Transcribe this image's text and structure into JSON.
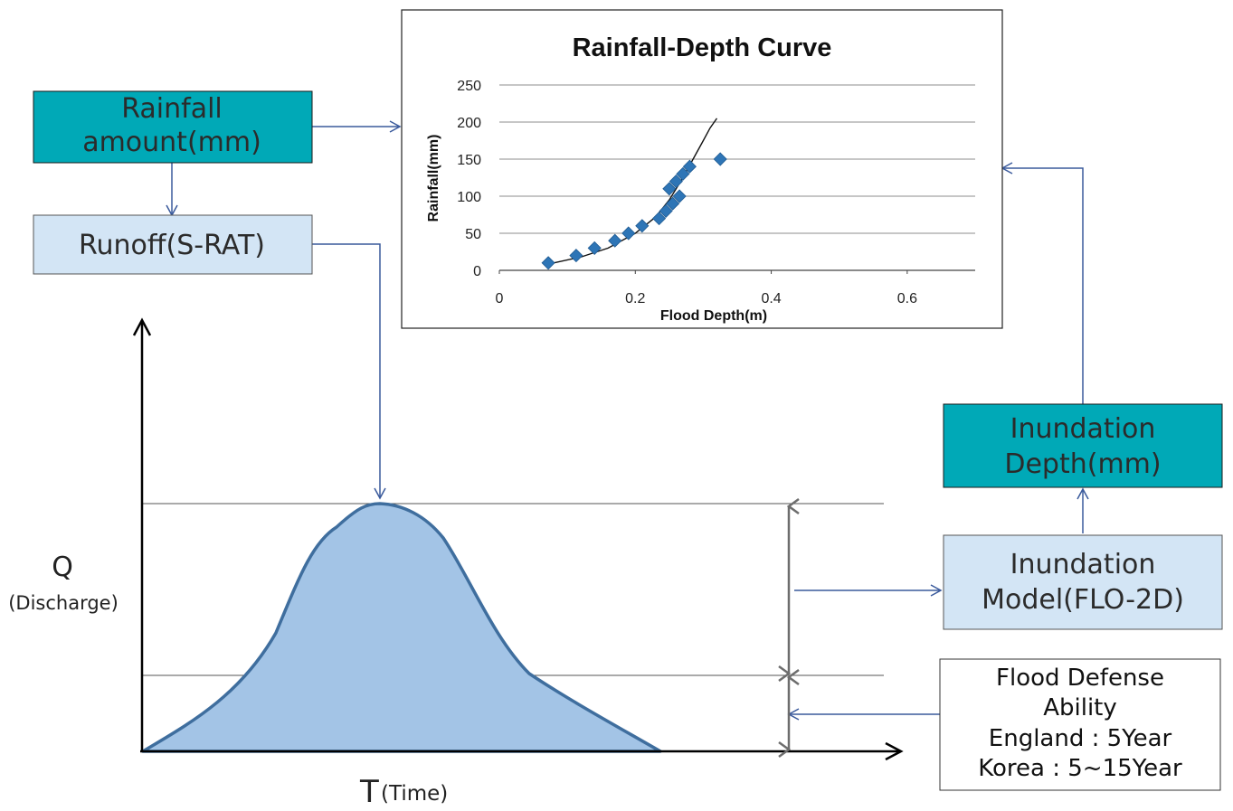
{
  "colors": {
    "teal": "#00a9b7",
    "light_blue": "#d3e5f5",
    "connector": "#3a5a9c",
    "hydrograph_fill": "#a3c4e6",
    "hydrograph_stroke": "#3f6e9e",
    "marker": "#2e75b6"
  },
  "boxes": {
    "rainfall": {
      "line1": "Rainfall",
      "line2": "amount(mm)"
    },
    "runoff": {
      "label": "Runoff(S-RAT)"
    },
    "inundation_depth": {
      "line1": "Inundation",
      "line2": "Depth(mm)"
    },
    "inundation_model": {
      "line1": "Inundation",
      "line2": "Model(FLO-2D)"
    },
    "defense": {
      "line1": "Flood Defense",
      "line2": "Ability",
      "line3": "England : 5Year",
      "line4": "Korea : 5~15Year"
    }
  },
  "hydrograph": {
    "y_label": "Q",
    "y_sub": "(Discharge)",
    "x_label": "T",
    "x_sub": "(Time)"
  },
  "chart_data": {
    "type": "scatter",
    "title": "Rainfall-Depth Curve",
    "xlabel": "Flood Depth(m)",
    "ylabel": "Rainfall(mm)",
    "xlim": [
      0,
      0.7
    ],
    "ylim": [
      0,
      250
    ],
    "x_ticks": [
      "0",
      "0.2",
      "0.4",
      "0.6"
    ],
    "y_ticks": [
      "0",
      "50",
      "100",
      "150",
      "200",
      "250"
    ],
    "gridlines": "horizontal",
    "points": [
      {
        "x": 0.072,
        "y": 10
      },
      {
        "x": 0.113,
        "y": 20
      },
      {
        "x": 0.14,
        "y": 30
      },
      {
        "x": 0.17,
        "y": 40
      },
      {
        "x": 0.19,
        "y": 50
      },
      {
        "x": 0.21,
        "y": 60
      },
      {
        "x": 0.235,
        "y": 70
      },
      {
        "x": 0.245,
        "y": 80
      },
      {
        "x": 0.255,
        "y": 90
      },
      {
        "x": 0.25,
        "y": 110
      },
      {
        "x": 0.26,
        "y": 120
      },
      {
        "x": 0.265,
        "y": 100
      },
      {
        "x": 0.27,
        "y": 130
      },
      {
        "x": 0.28,
        "y": 140
      },
      {
        "x": 0.325,
        "y": 150
      }
    ],
    "trendline": [
      {
        "x": 0.07,
        "y": 8
      },
      {
        "x": 0.12,
        "y": 18
      },
      {
        "x": 0.16,
        "y": 30
      },
      {
        "x": 0.2,
        "y": 50
      },
      {
        "x": 0.23,
        "y": 72
      },
      {
        "x": 0.25,
        "y": 95
      },
      {
        "x": 0.27,
        "y": 125
      },
      {
        "x": 0.285,
        "y": 150
      },
      {
        "x": 0.3,
        "y": 175
      },
      {
        "x": 0.31,
        "y": 192
      },
      {
        "x": 0.32,
        "y": 205
      }
    ]
  }
}
